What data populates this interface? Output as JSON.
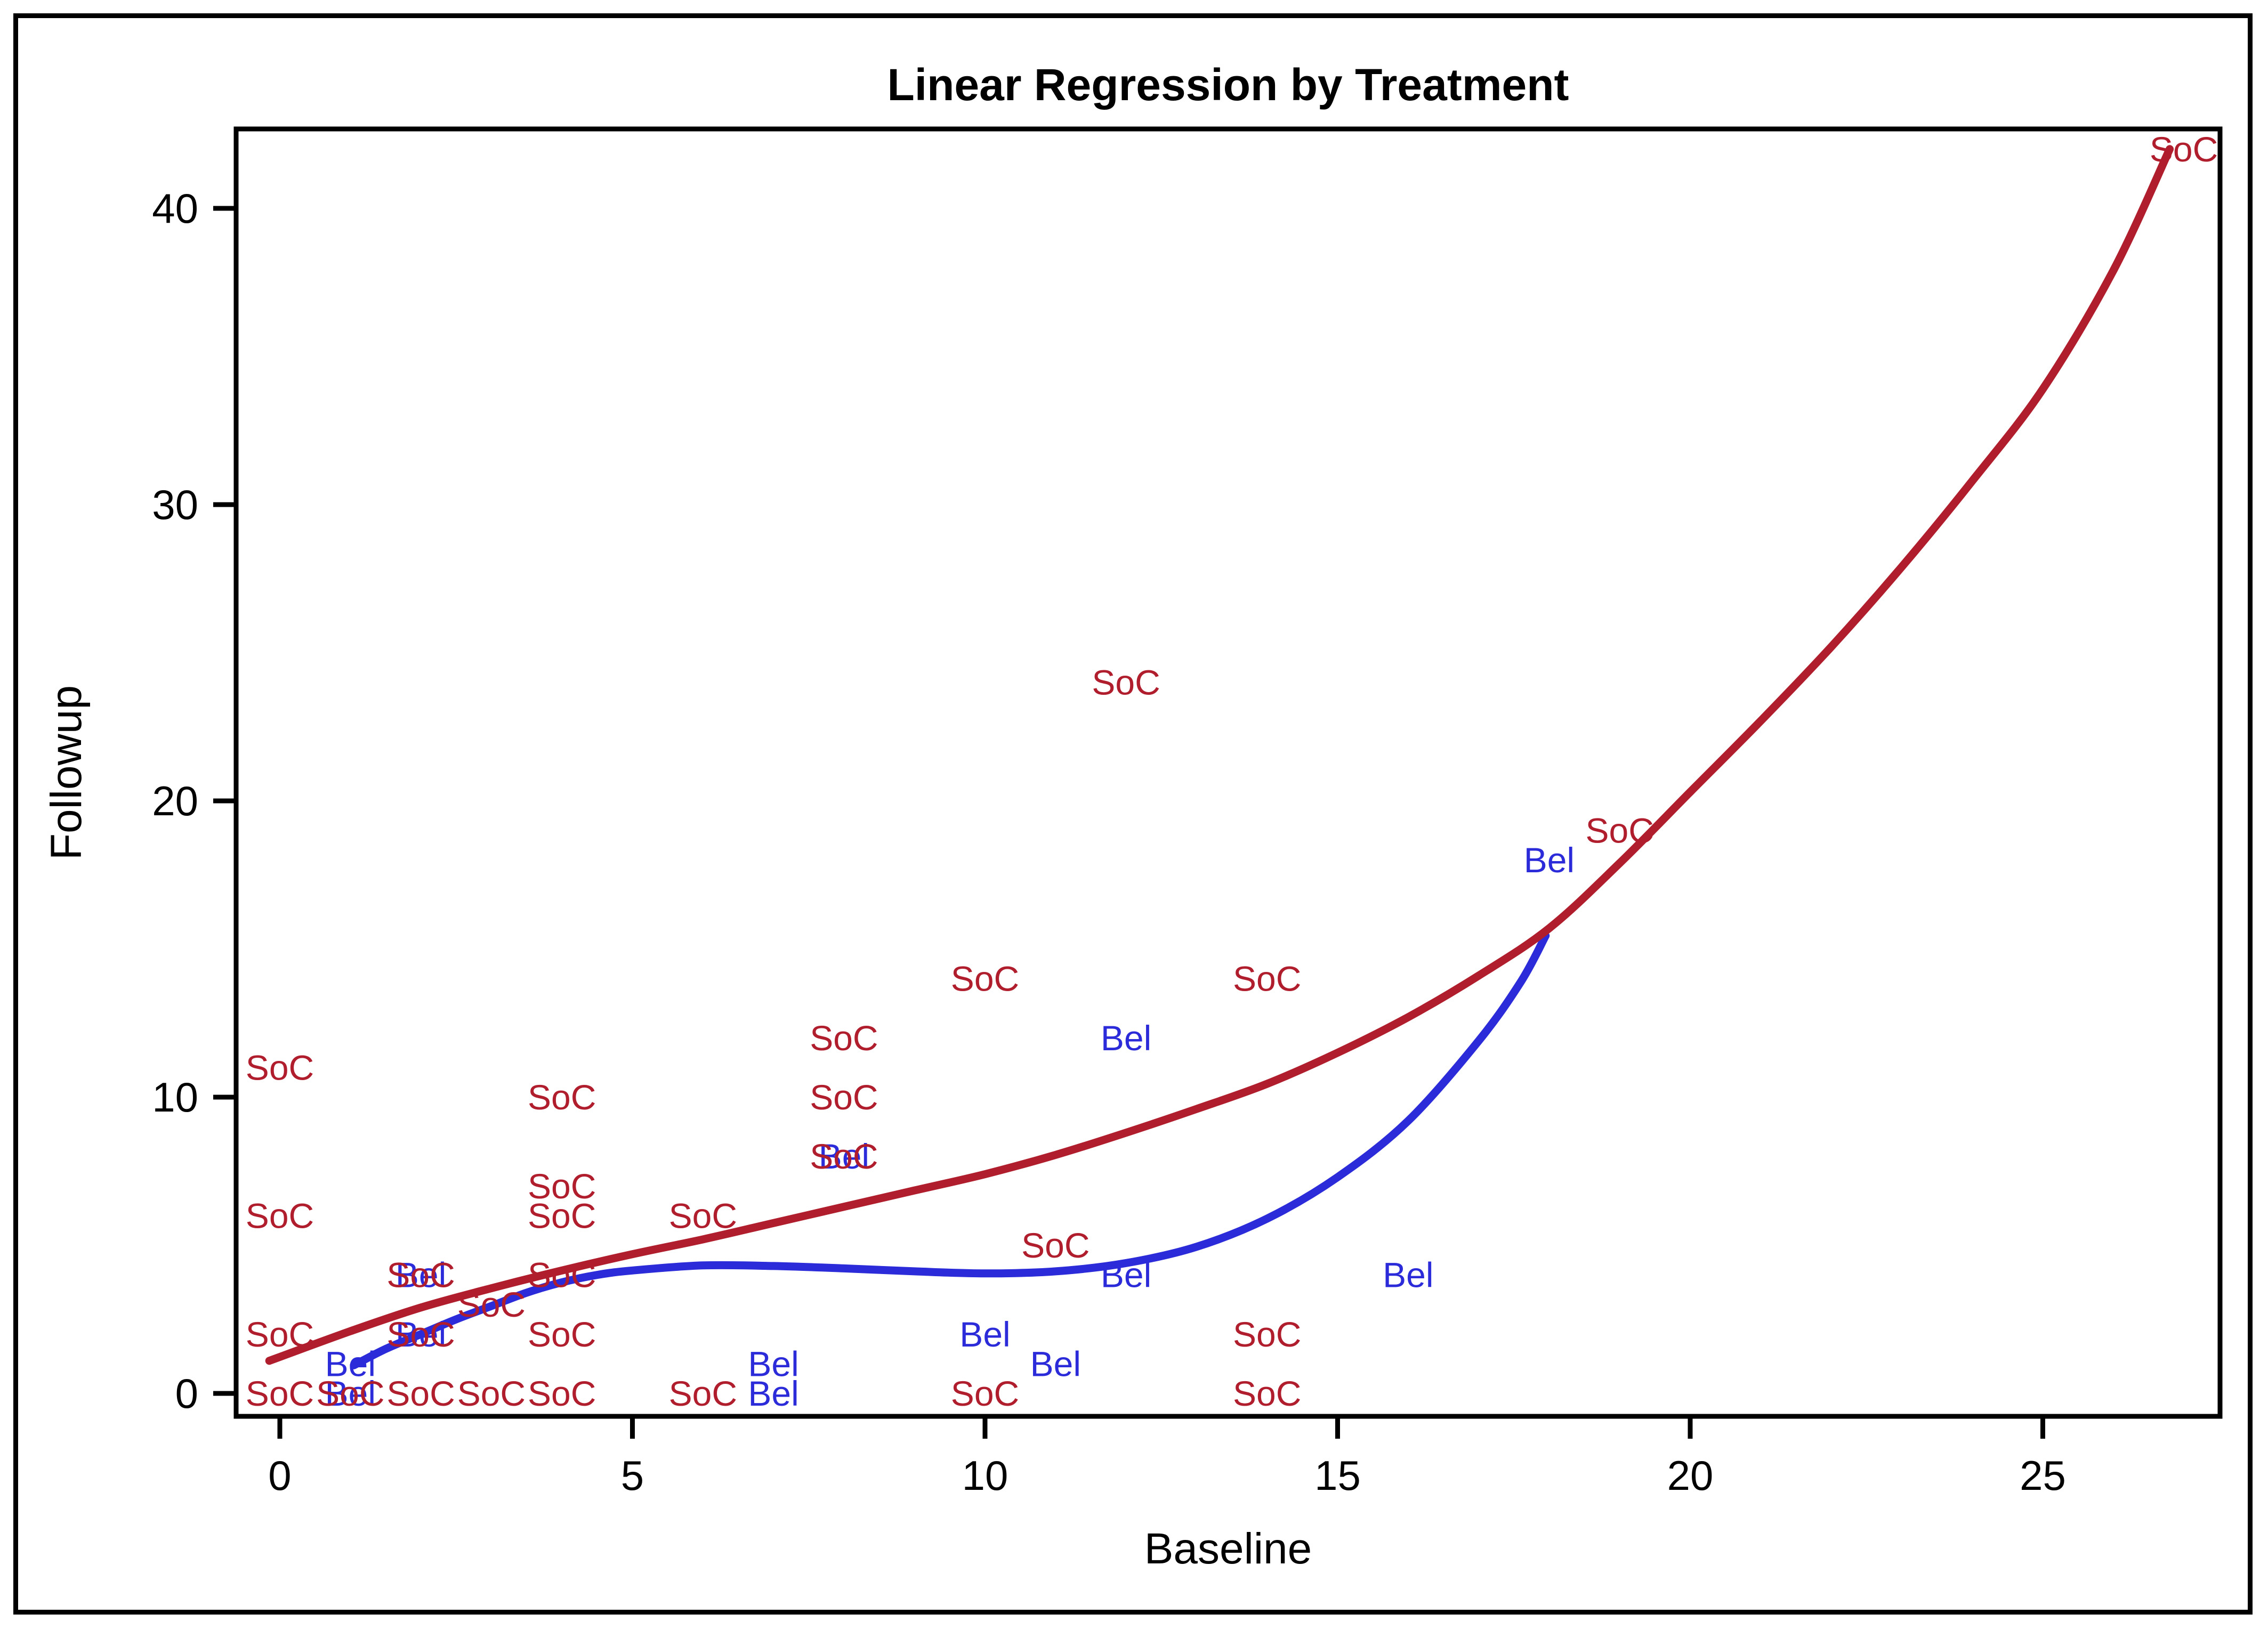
{
  "page": {
    "background": "#FFFFFF",
    "border_color": "#000000"
  },
  "chart_data": {
    "type": "scatter",
    "title": "Linear Regression by Treatment",
    "xlabel": "Baseline",
    "ylabel": "Followup",
    "x_ticks": [
      0,
      5,
      10,
      15,
      20,
      25
    ],
    "y_ticks": [
      0,
      10,
      20,
      30,
      40
    ],
    "xlim": [
      -0.6,
      27.5
    ],
    "ylim": [
      -0.8,
      42.7
    ],
    "grid": false,
    "legend": "none",
    "marker_style": "text-label",
    "series": [
      {
        "name": "Bel",
        "label": "Bel",
        "color": "#2B2BD9",
        "points": [
          [
            1,
            0
          ],
          [
            7,
            0
          ],
          [
            1,
            1
          ],
          [
            7,
            1
          ],
          [
            11,
            1
          ],
          [
            2,
            2
          ],
          [
            10,
            2
          ],
          [
            2,
            4
          ],
          [
            12,
            4
          ],
          [
            16,
            4
          ],
          [
            8,
            8
          ],
          [
            12,
            12
          ],
          [
            18,
            18
          ]
        ]
      },
      {
        "name": "SoC",
        "label": "SoC",
        "color": "#B01E2D",
        "points": [
          [
            0,
            0
          ],
          [
            1,
            0
          ],
          [
            2,
            0
          ],
          [
            3,
            0
          ],
          [
            4,
            0
          ],
          [
            6,
            0
          ],
          [
            10,
            0
          ],
          [
            14,
            0
          ],
          [
            0,
            2
          ],
          [
            2,
            2
          ],
          [
            4,
            2
          ],
          [
            14,
            2
          ],
          [
            3,
            3
          ],
          [
            2,
            4
          ],
          [
            4,
            4
          ],
          [
            11,
            5
          ],
          [
            0,
            6
          ],
          [
            4,
            6
          ],
          [
            6,
            6
          ],
          [
            4,
            7
          ],
          [
            8,
            8
          ],
          [
            4,
            10
          ],
          [
            8,
            10
          ],
          [
            0,
            11
          ],
          [
            8,
            12
          ],
          [
            10,
            14
          ],
          [
            14,
            14
          ],
          [
            19,
            19
          ],
          [
            12,
            24
          ],
          [
            27,
            42
          ]
        ]
      }
    ],
    "fit_curves": [
      {
        "name": "Bel",
        "color": "#2B2BD9",
        "points": [
          [
            1.05,
            0.95
          ],
          [
            1.5,
            1.5
          ],
          [
            2,
            2.0
          ],
          [
            2.5,
            2.5
          ],
          [
            3,
            2.95
          ],
          [
            3.5,
            3.4
          ],
          [
            4,
            3.75
          ],
          [
            4.5,
            4.0
          ],
          [
            5,
            4.15
          ],
          [
            6,
            4.32
          ],
          [
            7,
            4.3
          ],
          [
            8,
            4.22
          ],
          [
            9,
            4.12
          ],
          [
            10,
            4.05
          ],
          [
            11,
            4.12
          ],
          [
            12,
            4.4
          ],
          [
            13,
            4.95
          ],
          [
            14,
            5.9
          ],
          [
            15,
            7.3
          ],
          [
            16,
            9.2
          ],
          [
            17,
            11.9
          ],
          [
            17.6,
            13.9
          ],
          [
            17.95,
            15.45
          ]
        ]
      },
      {
        "name": "SoC",
        "color": "#B01E2D",
        "points": [
          [
            -0.15,
            1.1
          ],
          [
            1,
            2.1
          ],
          [
            2,
            2.9
          ],
          [
            3,
            3.55
          ],
          [
            4,
            4.15
          ],
          [
            5,
            4.7
          ],
          [
            6,
            5.2
          ],
          [
            7,
            5.75
          ],
          [
            8,
            6.3
          ],
          [
            9,
            6.85
          ],
          [
            10,
            7.4
          ],
          [
            11,
            8.05
          ],
          [
            12,
            8.8
          ],
          [
            13,
            9.6
          ],
          [
            14,
            10.45
          ],
          [
            15,
            11.5
          ],
          [
            16,
            12.7
          ],
          [
            17,
            14.1
          ],
          [
            18,
            15.7
          ],
          [
            19,
            17.9
          ],
          [
            20,
            20.3
          ],
          [
            21,
            22.7
          ],
          [
            22,
            25.2
          ],
          [
            23,
            27.9
          ],
          [
            24,
            30.8
          ],
          [
            25,
            33.9
          ],
          [
            26,
            37.9
          ],
          [
            26.8,
            42.0
          ]
        ]
      }
    ]
  }
}
